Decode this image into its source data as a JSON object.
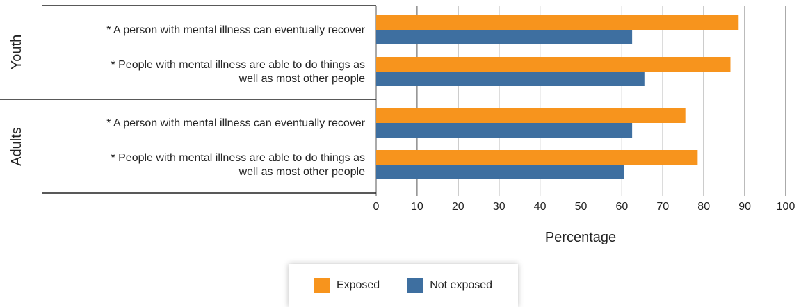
{
  "chart_data": {
    "type": "bar",
    "orientation": "horizontal",
    "xlabel": "Percentage",
    "xlim": [
      0,
      100
    ],
    "xticks": [
      0,
      10,
      20,
      30,
      40,
      50,
      60,
      70,
      80,
      90,
      100
    ],
    "grid": true,
    "legend_position": "bottom",
    "groups": [
      {
        "name": "Youth",
        "categories": [
          [
            "* A person with mental illness can eventually recover"
          ],
          [
            "* People with mental illness are able to do things as",
            "well as most other people"
          ]
        ]
      },
      {
        "name": "Adults",
        "categories": [
          [
            "* A person with mental illness can eventually recover"
          ],
          [
            "* People with mental illness are able to do things as",
            "well as most other people"
          ]
        ]
      }
    ],
    "series": [
      {
        "name": "Exposed",
        "color": "#f7941d",
        "values": [
          88.5,
          86.5,
          75.5,
          78.5
        ]
      },
      {
        "name": "Not exposed",
        "color": "#3e6fa0",
        "values": [
          62.5,
          65.5,
          62.5,
          60.5
        ]
      }
    ]
  }
}
